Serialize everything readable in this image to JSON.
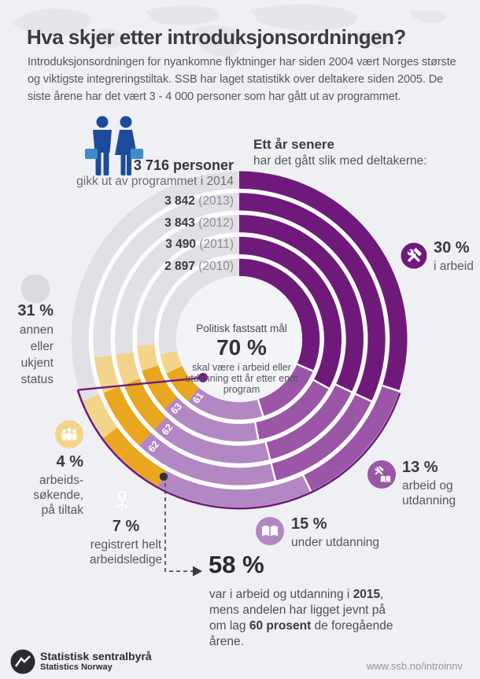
{
  "header": {
    "title": "Hva skjer etter introduksjonsordningen?",
    "intro": "Introduksjonsordningen for nyankomne flyktninger har siden 2004 vært Norges største og viktigste integreringstiltak. SSB har laget statistikk over deltakere siden 2005. De siste årene har det vært 3 - 4 000 personer som har gått ut av programmet."
  },
  "cohort": {
    "headline_bold": "3 716 personer",
    "headline_rest": "gikk ut av programmet i 2014",
    "years": [
      {
        "count": "3 842",
        "year": "(2013)"
      },
      {
        "count": "3 843",
        "year": "(2012)"
      },
      {
        "count": "3 490",
        "year": "(2011)"
      },
      {
        "count": "2 897",
        "year": "(2010)"
      }
    ]
  },
  "chart_intro": {
    "bold": "Ett år senere",
    "rest": "har det gått slik med deltakerne:"
  },
  "target": {
    "kicker": "Politisk fastsatt mål",
    "value": "70 %",
    "caption": "skal være i arbeid eller utdanning ett år etter endt program"
  },
  "legend": {
    "work": {
      "pct": "30 %",
      "lines": "i arbeid"
    },
    "work_edu": {
      "pct": "13 %",
      "lines": "arbeid og\nutdanning"
    },
    "edu": {
      "pct": "15 %",
      "lines": "under utdanning"
    },
    "other": {
      "pct": "31 %",
      "lines": "annen\neller\nukjent\nstatus"
    },
    "seeking": {
      "pct": "4 %",
      "lines": "arbeids-\nsøkende,\npå tiltak"
    },
    "unemployed": {
      "pct": "7 %",
      "lines": "registrert helt\narbeidsledige"
    }
  },
  "callout58": {
    "value": "58 %",
    "p1": "var i arbeid og utdanning i ",
    "b1": "2015",
    "p2": ", mens andelen har ligget jevnt på om lag ",
    "b2": "60 prosent",
    "p3": " de foregående årene."
  },
  "footer": {
    "org": "Statistisk sentralbyrå",
    "org_en": "Statistics Norway",
    "url": "www.ssb.no/introinnv"
  },
  "chart_data": {
    "type": "donut-multi-ring",
    "title": "Ett år senere har det gått slik med deltakerne",
    "unit": "percent",
    "legend_position": "around",
    "categories": [
      "i arbeid",
      "arbeid og utdanning",
      "under utdanning",
      "registrert helt arbeidsledige",
      "arbeidssøkende, på tiltak",
      "annen eller ukjent status"
    ],
    "colors": [
      "#6f1a7b",
      "#9b56a7",
      "#b287c3",
      "#e8a71f",
      "#f3d48b",
      "#e1e1e5"
    ],
    "breakdown_latest_year": {
      "i arbeid": 30,
      "arbeid og utdanning": 13,
      "under utdanning": 15,
      "registrert helt arbeidsledige": 7,
      "arbeidssøkende, på tiltak": 4,
      "annen eller ukjent status": 31
    },
    "rings": [
      {
        "year": 2014,
        "participants": "3 716",
        "in_work_or_edu_pct": 58,
        "segments": [
          30,
          13,
          15,
          7,
          4,
          31
        ],
        "label_on_ring": null
      },
      {
        "year": 2013,
        "participants": "3 842",
        "in_work_or_edu_pct": 62,
        "segments": [
          32,
          14,
          16,
          7,
          4,
          27
        ],
        "label_on_ring": "62"
      },
      {
        "year": 2012,
        "participants": "3 843",
        "in_work_or_edu_pct": 62,
        "segments": [
          32,
          14,
          16,
          7,
          4,
          27
        ],
        "label_on_ring": "62"
      },
      {
        "year": 2011,
        "participants": "3 490",
        "in_work_or_edu_pct": 63,
        "segments": [
          33,
          14,
          16,
          7,
          4,
          26
        ],
        "label_on_ring": "63"
      },
      {
        "year": 2010,
        "participants": "2 897",
        "in_work_or_edu_pct": 61,
        "segments": [
          31.5,
          13.7,
          15.8,
          7,
          4,
          28
        ],
        "label_on_ring": "61"
      }
    ],
    "target_pct": 70,
    "callout_pct": 58
  }
}
